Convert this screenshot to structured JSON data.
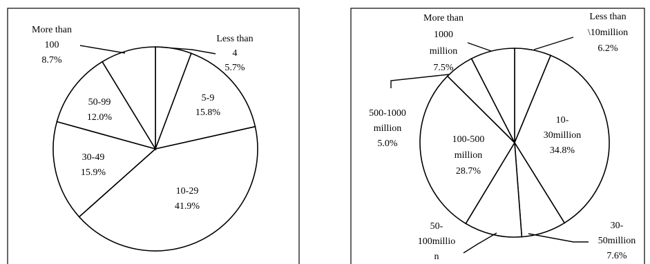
{
  "chart_data": [
    {
      "type": "pie",
      "title": "",
      "slices": [
        {
          "label": "Less than 4",
          "label_lines": [
            "Less than",
            "4",
            "5.7%"
          ],
          "value": 5.7
        },
        {
          "label": "5-9",
          "label_lines": [
            "5-9",
            "15.8%"
          ],
          "value": 15.8
        },
        {
          "label": "10-29",
          "label_lines": [
            "10-29",
            "41.9%"
          ],
          "value": 41.9
        },
        {
          "label": "30-49",
          "label_lines": [
            "30-49",
            "15.9%"
          ],
          "value": 15.9
        },
        {
          "label": "50-99",
          "label_lines": [
            "50-99",
            "12.0%"
          ],
          "value": 12.0
        },
        {
          "label": "More than 100",
          "label_lines": [
            "More than",
            "100",
            "8.7%"
          ],
          "value": 8.7
        }
      ]
    },
    {
      "type": "pie",
      "title": "",
      "slices": [
        {
          "label": "Less than 10million",
          "label_lines": [
            "Less than",
            "\\10million",
            "6.2%"
          ],
          "value": 6.2
        },
        {
          "label": "10-30million",
          "label_lines": [
            "10-",
            "30million",
            "34.8%"
          ],
          "value": 34.8
        },
        {
          "label": "30-50million",
          "label_lines": [
            "30-",
            "50million",
            "7.6%"
          ],
          "value": 7.6
        },
        {
          "label": "50-100million",
          "label_lines": [
            "50-",
            "100millio",
            "n"
          ],
          "value": 9.8
        },
        {
          "label": "100-500 million",
          "label_lines": [
            "100-500",
            "million",
            "28.7%"
          ],
          "value": 28.7
        },
        {
          "label": "500-1000 million",
          "label_lines": [
            "500-1000",
            "million",
            "5.0%"
          ],
          "value": 5.0
        },
        {
          "label": "More than 1000 million",
          "label_lines": [
            "More than",
            "1000",
            "million",
            "7.5%"
          ],
          "value": 7.5
        }
      ]
    }
  ]
}
